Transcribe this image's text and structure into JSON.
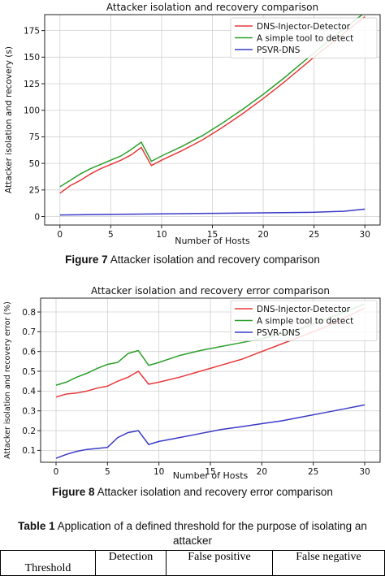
{
  "charts": [
    {
      "title": "Attacker isolation and recovery comparison",
      "xlabel": "Number of Hosts",
      "ylabel": "Attacker isolation and recovery (s)",
      "caption_label": "Figure 7",
      "caption_text": "Attacker isolation and recovery comparison"
    },
    {
      "title": "Attacker isolation and recovery error comparison",
      "xlabel": "Number of Hosts",
      "ylabel": "Attacker isolation and recovery error (%)",
      "caption_label": "Figure 8",
      "caption_text": "Attacker isolation and recovery error comparison"
    }
  ],
  "table": {
    "caption_label": "Table 1",
    "caption_text": "Application of a defined threshold for the purpose of isolating an attacker",
    "headers": [
      "Threshold",
      "Detection",
      "False positive",
      "False negative"
    ]
  },
  "chart_data": [
    {
      "type": "line",
      "title": "Attacker isolation and recovery comparison",
      "xlabel": "Number of Hosts",
      "ylabel": "Attacker isolation and recovery (s)",
      "xlim": [
        -1.5,
        31.5
      ],
      "ylim": [
        -8,
        190
      ],
      "xticks": [
        0,
        5,
        10,
        15,
        20,
        25,
        30
      ],
      "yticks": [
        0,
        25,
        50,
        75,
        100,
        125,
        150,
        175
      ],
      "grid": true,
      "legend": "top-right",
      "series": [
        {
          "name": "DNS-Injector-Detector",
          "color": "#e8393a",
          "x": [
            0,
            1,
            2,
            3,
            4,
            5,
            6,
            7,
            8,
            9,
            10,
            12,
            14,
            16,
            18,
            20,
            22,
            24,
            26,
            28,
            30
          ],
          "y": [
            22,
            29,
            34,
            40,
            45,
            49,
            53,
            58,
            65,
            48,
            53,
            62,
            72,
            84,
            97,
            111,
            126,
            142,
            158,
            173,
            188
          ]
        },
        {
          "name": "A simple tool to detect",
          "color": "#2ca02c",
          "x": [
            0,
            1,
            2,
            3,
            4,
            5,
            6,
            7,
            8,
            9,
            10,
            12,
            14,
            16,
            18,
            20,
            22,
            24,
            26,
            28,
            30
          ],
          "y": [
            28,
            34,
            40,
            45,
            49,
            53,
            57,
            63,
            70,
            52,
            57,
            66,
            76,
            88,
            101,
            115,
            130,
            146,
            162,
            177,
            192
          ]
        },
        {
          "name": "PSVR-DNS",
          "color": "#3a3ac8",
          "x": [
            0,
            5,
            10,
            15,
            20,
            25,
            28,
            30
          ],
          "y": [
            1.5,
            2,
            2.5,
            3,
            3.5,
            4,
            5,
            7
          ]
        }
      ]
    },
    {
      "type": "line",
      "title": "Attacker isolation and recovery error comparison",
      "xlabel": "Number of Hosts",
      "ylabel": "Attacker isolation and recovery error (%)",
      "xlim": [
        -1.5,
        31.5
      ],
      "ylim": [
        0.04,
        0.87
      ],
      "xticks": [
        0,
        5,
        10,
        15,
        20,
        25,
        30
      ],
      "yticks": [
        0.1,
        0.2,
        0.3,
        0.4,
        0.5,
        0.6,
        0.7,
        0.8
      ],
      "grid": true,
      "legend": "top-right",
      "series": [
        {
          "name": "DNS-Injector-Detector",
          "color": "#e8393a",
          "x": [
            0,
            1,
            2,
            3,
            4,
            5,
            6,
            7,
            8,
            9,
            10,
            12,
            14,
            16,
            18,
            20,
            22,
            24,
            26,
            28,
            30
          ],
          "y": [
            0.37,
            0.385,
            0.39,
            0.4,
            0.415,
            0.425,
            0.45,
            0.47,
            0.5,
            0.435,
            0.445,
            0.47,
            0.5,
            0.53,
            0.56,
            0.6,
            0.64,
            0.68,
            0.72,
            0.77,
            0.82
          ]
        },
        {
          "name": "A simple tool to detect",
          "color": "#2ca02c",
          "x": [
            0,
            1,
            2,
            3,
            4,
            5,
            6,
            7,
            8,
            9,
            10,
            12,
            14,
            16,
            18,
            20,
            22,
            24,
            26,
            28,
            30
          ],
          "y": [
            0.43,
            0.445,
            0.47,
            0.49,
            0.515,
            0.535,
            0.545,
            0.59,
            0.605,
            0.53,
            0.545,
            0.58,
            0.605,
            0.625,
            0.645,
            0.665,
            0.69,
            0.72,
            0.76,
            0.8,
            0.84
          ]
        },
        {
          "name": "PSVR-DNS",
          "color": "#3a3ac8",
          "x": [
            0,
            1,
            2,
            3,
            4,
            5,
            6,
            7,
            8,
            9,
            10,
            12,
            14,
            16,
            18,
            20,
            22,
            24,
            26,
            28,
            30
          ],
          "y": [
            0.06,
            0.08,
            0.095,
            0.105,
            0.11,
            0.115,
            0.165,
            0.19,
            0.2,
            0.13,
            0.145,
            0.165,
            0.185,
            0.205,
            0.22,
            0.235,
            0.25,
            0.27,
            0.29,
            0.31,
            0.33
          ]
        }
      ]
    }
  ]
}
